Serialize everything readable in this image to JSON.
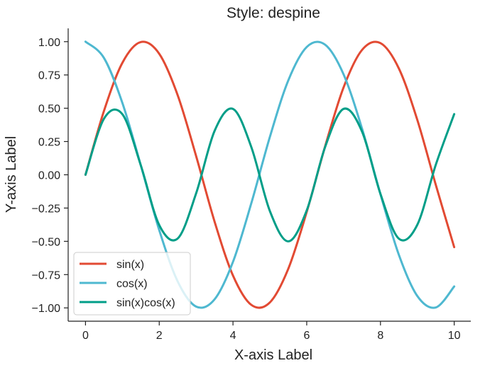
{
  "chart_data": {
    "type": "line",
    "title": "Style: despine",
    "xlabel": "X-axis Label",
    "ylabel": "Y-axis Label",
    "xlim": [
      -0.47,
      10.45
    ],
    "ylim": [
      -1.1,
      1.1
    ],
    "xticks": [
      0,
      2,
      4,
      6,
      8,
      10
    ],
    "xtick_labels": [
      "0",
      "2",
      "4",
      "6",
      "8",
      "10"
    ],
    "yticks": [
      1.0,
      0.75,
      0.5,
      0.25,
      0.0,
      -0.25,
      -0.5,
      -0.75,
      -1.0
    ],
    "ytick_labels": [
      "1.00",
      "0.75",
      "0.50",
      "0.25",
      "0.00",
      "−0.25",
      "−0.50",
      "−0.75",
      "−1.00"
    ],
    "grid": false,
    "despine": true,
    "legend_position": "lower-left",
    "x": [
      0,
      0.5,
      1,
      1.5,
      2,
      2.5,
      3,
      3.5,
      4,
      4.5,
      5,
      5.5,
      6,
      6.5,
      7,
      7.5,
      8,
      8.5,
      9,
      9.5,
      10
    ],
    "series": [
      {
        "name": "sin(x)",
        "color": "#e24a33",
        "values": [
          0,
          0.479,
          0.841,
          0.997,
          0.909,
          0.598,
          0.141,
          -0.351,
          -0.757,
          -0.978,
          -0.959,
          -0.706,
          -0.279,
          0.215,
          0.657,
          0.938,
          0.989,
          0.798,
          0.412,
          -0.075,
          -0.544
        ]
      },
      {
        "name": "cos(x)",
        "color": "#4eb8d0",
        "values": [
          1,
          0.878,
          0.54,
          0.071,
          -0.416,
          -0.801,
          -0.99,
          -0.936,
          -0.654,
          -0.211,
          0.284,
          0.709,
          0.96,
          0.977,
          0.754,
          0.347,
          -0.146,
          -0.602,
          -0.911,
          -0.997,
          -0.839
        ]
      },
      {
        "name": "sin(x)cos(x)",
        "color": "#009e88",
        "values": [
          0,
          0.421,
          0.455,
          0.071,
          -0.378,
          -0.479,
          -0.14,
          0.329,
          0.495,
          0.206,
          -0.272,
          -0.5,
          -0.268,
          0.21,
          0.495,
          0.325,
          -0.144,
          -0.48,
          -0.375,
          0.075,
          0.456
        ]
      }
    ]
  }
}
